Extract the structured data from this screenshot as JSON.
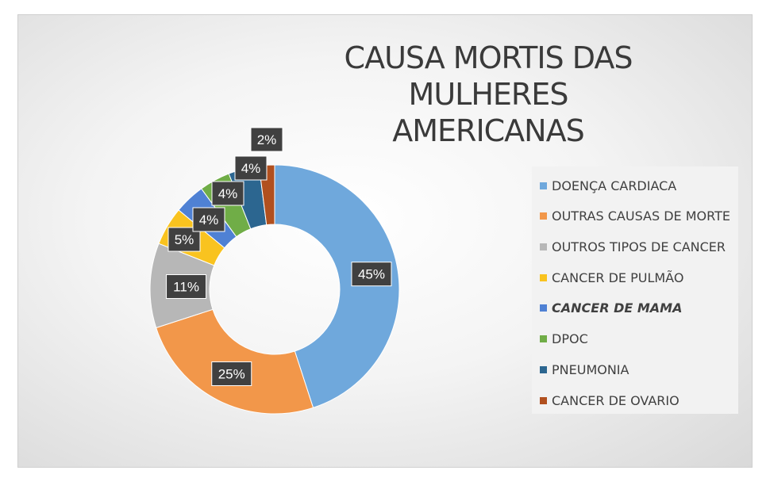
{
  "chart_data": {
    "type": "pie",
    "title": "CAUSA MORTIS DAS MULHERES AMERICANAS",
    "title_lines": [
      "CAUSA MORTIS DAS MULHERES",
      "AMERICANAS"
    ],
    "donut": true,
    "legend_position": "right",
    "series": [
      {
        "name": "DOENÇA CARDIACA",
        "value": 45,
        "label": "45%",
        "color": "#6fa8dc"
      },
      {
        "name": "OUTRAS CAUSAS DE MORTE",
        "value": 25,
        "label": "25%",
        "color": "#f2974a"
      },
      {
        "name": "OUTROS TIPOS DE CANCER",
        "value": 11,
        "label": "11%",
        "color": "#b7b7b7"
      },
      {
        "name": "CANCER DE PULMÃO",
        "value": 5,
        "label": "5%",
        "color": "#f9c31f"
      },
      {
        "name": "CANCER DE MAMA",
        "value": 4,
        "label": "4%",
        "color": "#4f81d4"
      },
      {
        "name": "DPOC",
        "value": 4,
        "label": "4%",
        "color": "#70ad47"
      },
      {
        "name": "PNEUMONIA",
        "value": 4,
        "label": "4%",
        "color": "#2c6690"
      },
      {
        "name": "CANCER DE OVARIO",
        "value": 2,
        "label": "2%",
        "color": "#b1501f"
      }
    ]
  }
}
